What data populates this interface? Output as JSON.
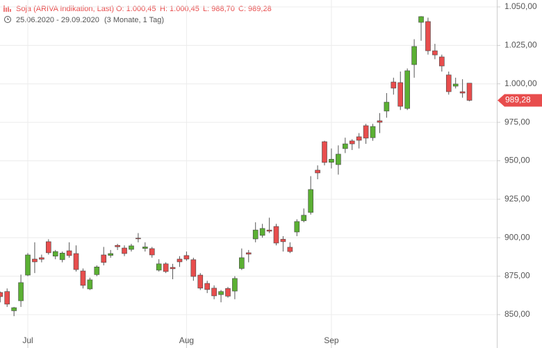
{
  "header": {
    "title": "Soja (ARIVA Indikation, Last)",
    "open": "O: 1.000,45",
    "high": "H: 1.000,45",
    "low": "L: 988,70",
    "close": "C: 989,28",
    "range": "25.06.2020 - 29.09.2020",
    "period": "(3 Monate, 1 Tag)"
  },
  "chart_data": {
    "type": "candlestick",
    "categories": [
      null,
      null,
      null,
      null,
      "Jul",
      null,
      null,
      null,
      null,
      null,
      null,
      null,
      null,
      null,
      null,
      null,
      null,
      null,
      null,
      null,
      null,
      null,
      null,
      null,
      null,
      null,
      null,
      "Aug",
      null,
      null,
      null,
      null,
      null,
      null,
      null,
      null,
      null,
      null,
      null,
      null,
      null,
      null,
      null,
      null,
      null,
      null,
      null,
      null,
      "Sep",
      null,
      null,
      null,
      null,
      null,
      null,
      null,
      null,
      null,
      null,
      null,
      null,
      null,
      null,
      null,
      null,
      null,
      null,
      null,
      null
    ],
    "open": [
      864.4,
      865,
      852.5,
      859,
      875.7,
      886.1,
      887,
      897.4,
      888,
      885.7,
      891.5,
      889.7,
      878.4,
      866.7,
      876,
      888.8,
      888.5,
      895,
      893.3,
      892.4,
      899.7,
      893,
      892.9,
      878.9,
      883,
      880.7,
      886.1,
      888.4,
      885.7,
      875.7,
      870.3,
      867.2,
      863,
      867,
      865.3,
      880,
      890.2,
      899.2,
      901.5,
      905,
      907.3,
      899,
      893.8,
      903.7,
      911,
      916.4,
      943.9,
      962.4,
      949,
      947.5,
      957.9,
      962.9,
      965.6,
      972.8,
      965,
      976,
      982.3,
      1001.2,
      1000.8,
      984,
      1012.5,
      1040,
      1040.5,
      1021.5,
      1017.5,
      1005.8,
      998.5,
      994.9,
      1000.45
    ],
    "high": [
      865,
      867,
      855,
      876,
      890,
      897,
      889,
      899,
      892,
      891,
      897,
      895,
      880,
      874,
      882,
      894,
      892,
      896,
      895,
      896,
      903,
      897,
      894,
      886,
      884,
      883,
      888,
      891,
      887,
      877,
      872,
      869,
      866,
      868,
      875,
      893,
      892,
      910,
      909,
      913,
      909,
      901,
      897,
      912,
      919,
      940,
      947,
      963,
      958,
      960,
      965,
      964,
      968,
      974,
      974,
      981,
      994,
      1004,
      1008,
      1010,
      1029,
      1044,
      1043,
      1026,
      1019,
      1008,
      1004,
      1003,
      1000.45
    ],
    "low": [
      858,
      855,
      849,
      855,
      875,
      877,
      884,
      889,
      886,
      884,
      887,
      878,
      867,
      866,
      875,
      882,
      887,
      892,
      888,
      891,
      897,
      891,
      887,
      878,
      877,
      873,
      881,
      885,
      872,
      866,
      864,
      860,
      858,
      861,
      860,
      879,
      884,
      897,
      900,
      903,
      895,
      891,
      890,
      901,
      910,
      915,
      938,
      947,
      945,
      941,
      955,
      957,
      958,
      961,
      963,
      968,
      978,
      993,
      983,
      983,
      1004,
      1028,
      1019,
      1016,
      1008,
      993,
      997,
      991,
      988.7
    ],
    "close": [
      861.7,
      856.8,
      854.5,
      870.8,
      888.8,
      884.3,
      886,
      890.2,
      891,
      890,
      888.4,
      879.3,
      869,
      872.6,
      881,
      883.9,
      889.7,
      894.1,
      889.7,
      894.7,
      899.3,
      894,
      888.8,
      883,
      878,
      879.8,
      884.3,
      886.1,
      874.8,
      867.2,
      866.3,
      862.2,
      865,
      862,
      873.5,
      887,
      889.3,
      905,
      906,
      904.2,
      896.5,
      897.4,
      891,
      910.5,
      914.6,
      931.3,
      942.1,
      948.9,
      951,
      954.3,
      961,
      961,
      963.3,
      964.7,
      972.3,
      975,
      988.1,
      997.2,
      985.4,
      1008.5,
      1024.3,
      1043.7,
      1021.5,
      1018.8,
      1011.6,
      994.9,
      999.9,
      994,
      989.28
    ],
    "up_color": "#5bb033",
    "down_color": "#e84d4d",
    "ylim": [
      828.3,
      1054.5
    ],
    "yticks": [
      {
        "value": 850,
        "label": "850,00"
      },
      {
        "value": 875,
        "label": "875,00"
      },
      {
        "value": 900,
        "label": "900,00"
      },
      {
        "value": 925,
        "label": "925,00"
      },
      {
        "value": 950,
        "label": "950,00"
      },
      {
        "value": 975,
        "label": "975,00"
      },
      {
        "value": 1000,
        "label": "1.000,00"
      },
      {
        "value": 1025,
        "label": "1.025,00"
      },
      {
        "value": 1050,
        "label": "1.050,00"
      }
    ],
    "last_price": {
      "value": 989.28,
      "label": "989,28"
    },
    "grid": true
  }
}
